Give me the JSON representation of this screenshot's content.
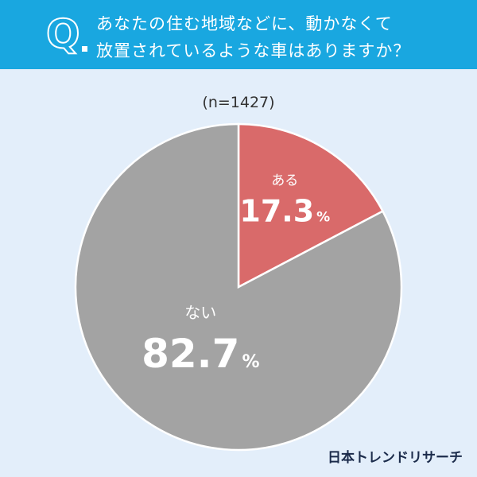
{
  "header": {
    "q_mark": "Q",
    "question_line1": "あなたの住む地域などに、動かなくて",
    "question_line2": "放置されているような車はありますか？"
  },
  "sample_size": "(n=1427)",
  "brand": "日本トレンドリサーチ",
  "colors": {
    "header": "#19a7e0",
    "yes": "#d96a6a",
    "no": "#a3a3a3",
    "background": "#e3eefa"
  },
  "chart_data": {
    "type": "pie",
    "title": "あなたの住む地域などに、動かなくて放置されているような車はありますか？",
    "slices": [
      {
        "label": "ある",
        "value": 17.3,
        "display": "17.3",
        "color": "#d96a6a"
      },
      {
        "label": "ない",
        "value": 82.7,
        "display": "82.7",
        "color": "#a3a3a3"
      }
    ],
    "unit": "%"
  }
}
